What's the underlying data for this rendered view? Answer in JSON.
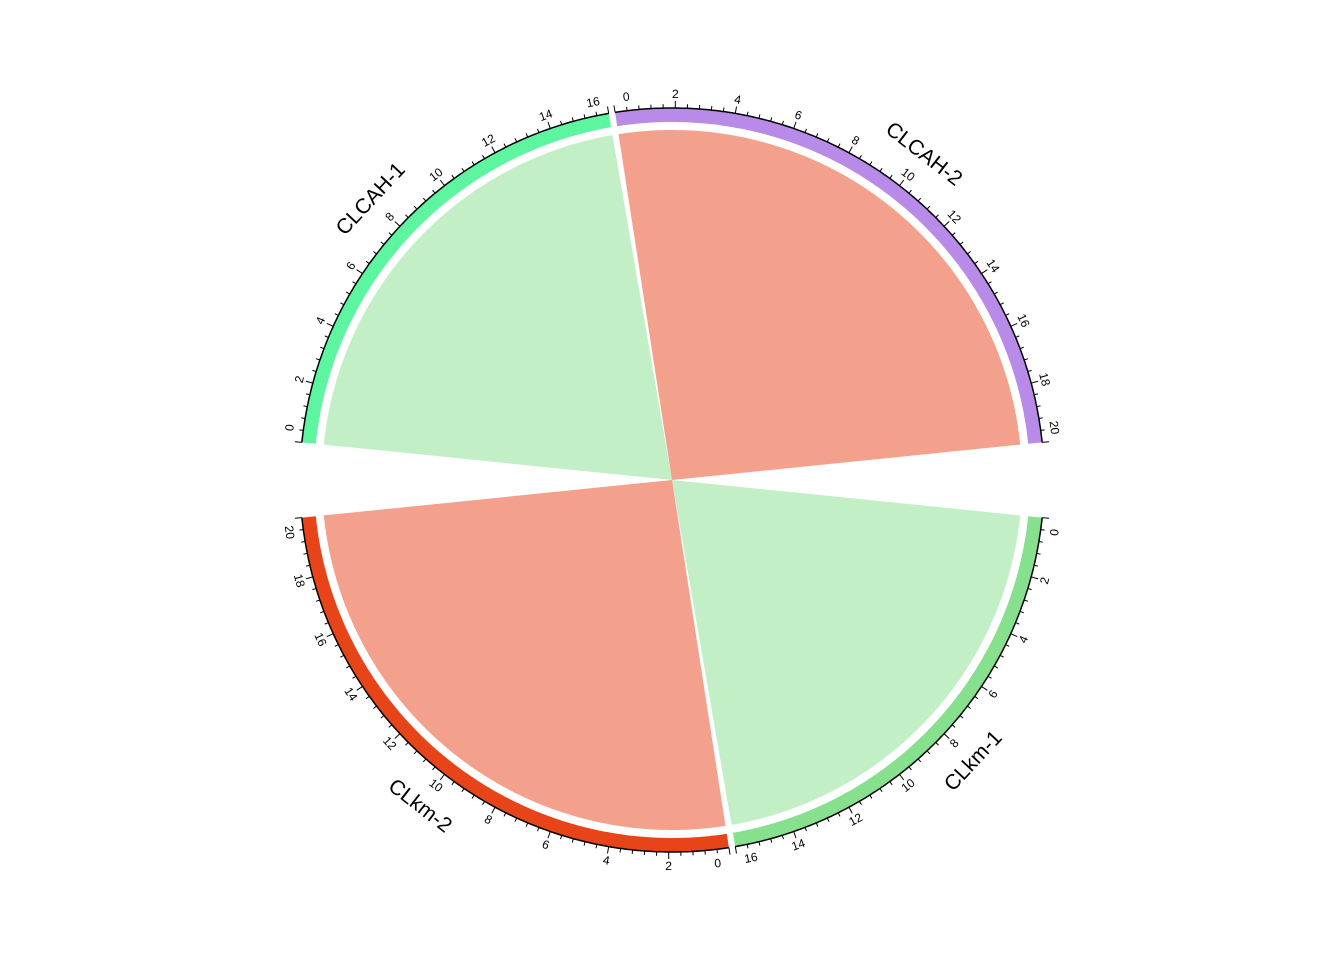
{
  "chart_data": {
    "type": "chord",
    "title": "",
    "sectors": [
      {
        "name": "CLCAH-1",
        "xlim": [
          0,
          16
        ],
        "color": "#5EF5A0"
      },
      {
        "name": "CLCAH-2",
        "xlim": [
          0,
          20
        ],
        "color": "#B98BE8"
      },
      {
        "name": "CLkm-1",
        "xlim": [
          0,
          16
        ],
        "color": "#86E08E"
      },
      {
        "name": "CLkm-2",
        "xlim": [
          0,
          20
        ],
        "color": "#E8441A"
      }
    ],
    "links": [
      {
        "from": "CLCAH-1",
        "to": "CLkm-1",
        "from_range": [
          0,
          16
        ],
        "to_range": [
          0,
          16
        ],
        "color": "#86E08E",
        "opacity": 0.5
      },
      {
        "from": "CLCAH-2",
        "to": "CLkm-2",
        "from_range": [
          0,
          20
        ],
        "to_range": [
          0,
          20
        ],
        "color": "#E8441A",
        "opacity": 0.5
      }
    ],
    "axis": {
      "major_tick_interval": 2,
      "minor_ticks_between": 4
    },
    "direction": "clockwise"
  }
}
